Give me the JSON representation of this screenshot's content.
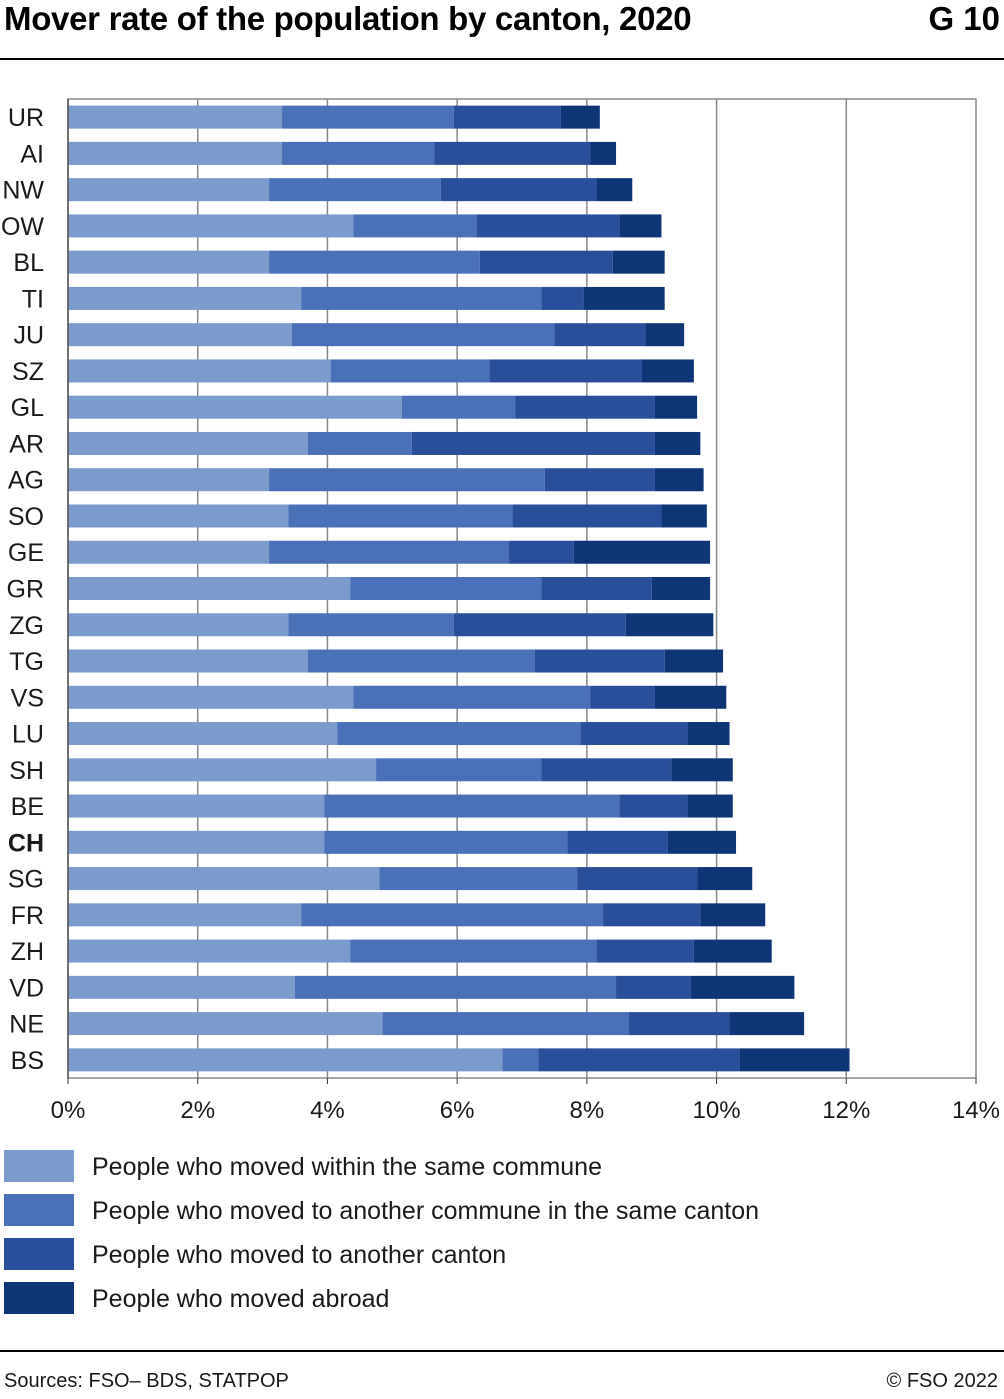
{
  "header": {
    "title": "Mover rate of the population by canton, 2020",
    "code": "G 10"
  },
  "footer": {
    "sources": "Sources: FSO– BDS, STATPOP",
    "copyright": "© FSO 2022"
  },
  "colors": {
    "within_commune": "#7b9bcd",
    "another_commune": "#4a71b8",
    "another_canton": "#2a4f9a",
    "abroad": "#0e3576",
    "grid": "#888888"
  },
  "chart_data": {
    "type": "bar",
    "orientation": "horizontal",
    "stacked": true,
    "categories": [
      "UR",
      "AI",
      "NW",
      "OW",
      "BL",
      "TI",
      "JU",
      "SZ",
      "GL",
      "AR",
      "AG",
      "SO",
      "GE",
      "GR",
      "ZG",
      "TG",
      "VS",
      "LU",
      "SH",
      "BE",
      "CH",
      "SG",
      "FR",
      "ZH",
      "VD",
      "NE",
      "BS"
    ],
    "highlight_category": "CH",
    "series": [
      {
        "name": "People who moved within the same commune",
        "values": [
          3.3,
          3.3,
          3.1,
          4.4,
          3.1,
          3.6,
          3.45,
          4.05,
          5.15,
          3.7,
          3.1,
          3.4,
          3.1,
          4.35,
          3.4,
          3.7,
          4.4,
          4.15,
          4.75,
          3.95,
          3.95,
          4.8,
          3.6,
          4.35,
          3.5,
          4.85,
          6.7
        ]
      },
      {
        "name": "People who moved to another commune in the same canton",
        "values": [
          2.65,
          2.35,
          2.65,
          1.9,
          3.25,
          3.7,
          4.05,
          2.45,
          1.75,
          1.6,
          4.25,
          3.45,
          3.7,
          2.95,
          2.55,
          3.5,
          3.65,
          3.75,
          2.55,
          4.55,
          3.75,
          3.05,
          4.65,
          3.8,
          4.95,
          3.8,
          0.55
        ]
      },
      {
        "name": "People who moved to another canton",
        "values": [
          1.65,
          2.4,
          2.4,
          2.2,
          2.05,
          0.65,
          1.4,
          2.35,
          2.15,
          3.75,
          1.7,
          2.3,
          1.0,
          1.7,
          2.65,
          2.0,
          1.0,
          1.65,
          2.0,
          1.05,
          1.55,
          1.85,
          1.5,
          1.5,
          1.15,
          1.55,
          3.1
        ]
      },
      {
        "name": "People who moved abroad",
        "values": [
          0.6,
          0.4,
          0.55,
          0.65,
          0.8,
          1.25,
          0.6,
          0.8,
          0.65,
          0.7,
          0.75,
          0.7,
          2.1,
          0.9,
          1.35,
          0.9,
          1.1,
          0.65,
          0.95,
          0.7,
          1.05,
          0.85,
          1.0,
          1.2,
          1.6,
          1.15,
          1.7
        ]
      }
    ],
    "xlim": [
      0,
      14
    ],
    "xticks": [
      "0%",
      "2%",
      "4%",
      "6%",
      "8%",
      "10%",
      "12%",
      "14%"
    ],
    "tick_step": 2,
    "grid": true,
    "legend_placement": "bottom"
  }
}
